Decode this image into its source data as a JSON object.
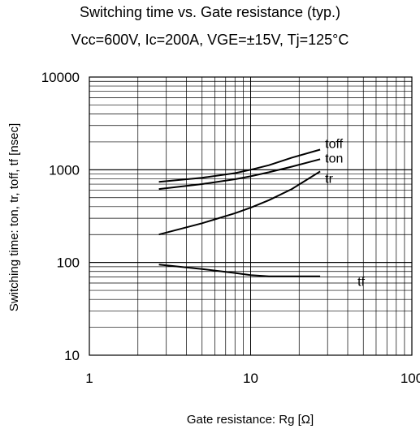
{
  "chart_data": {
    "type": "line",
    "title": "Switching time vs. Gate resistance (typ.)",
    "subtitle": "Vcc=600V, Ic=200A, VGE=±15V, Tj=125°C",
    "xlabel": "Gate resistance: Rg [Ω]",
    "ylabel": "Switching time:  ton, tr, toff, tf  [nsec]",
    "xscale": "log",
    "yscale": "log",
    "xlim": [
      1,
      100
    ],
    "ylim": [
      10,
      10000
    ],
    "x_ticks": [
      "1",
      "10",
      "100"
    ],
    "y_ticks": [
      "10",
      "100",
      "1000",
      "10000"
    ],
    "grid": true,
    "series": [
      {
        "name": "toff",
        "x": [
          2.7,
          5,
          8,
          10,
          13,
          18,
          27
        ],
        "y": [
          740,
          820,
          920,
          1000,
          1120,
          1350,
          1650
        ]
      },
      {
        "name": "ton",
        "x": [
          2.7,
          5,
          8,
          10,
          13,
          18,
          27
        ],
        "y": [
          620,
          700,
          790,
          850,
          940,
          1080,
          1300
        ]
      },
      {
        "name": "tr",
        "x": [
          2.7,
          5,
          8,
          10,
          13,
          18,
          27
        ],
        "y": [
          200,
          265,
          340,
          390,
          470,
          620,
          960
        ]
      },
      {
        "name": "tf",
        "x": [
          2.7,
          5,
          8,
          10,
          13,
          18,
          27
        ],
        "y": [
          95,
          85,
          77,
          73,
          71,
          71,
          71
        ]
      }
    ]
  }
}
